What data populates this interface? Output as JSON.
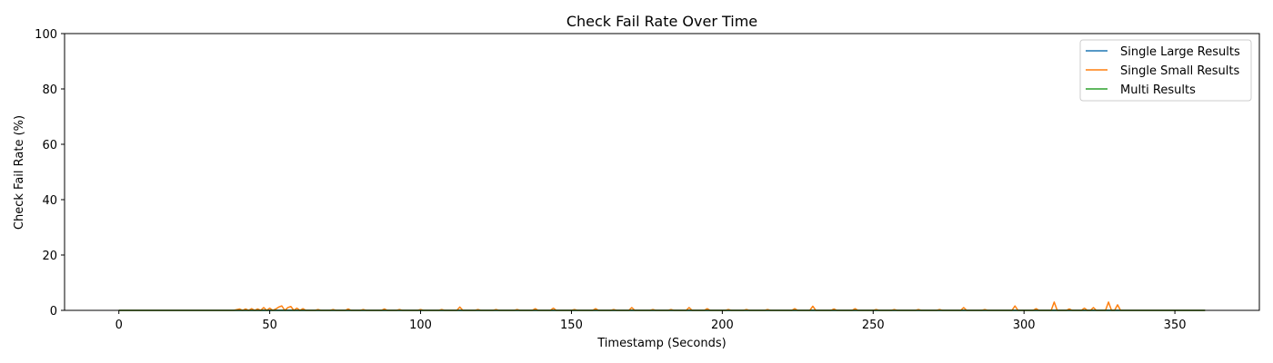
{
  "chart_data": {
    "type": "line",
    "title": "Check Fail Rate Over Time",
    "xlabel": "Timestamp (Seconds)",
    "ylabel": "Check Fail Rate (%)",
    "xlim": [
      -18,
      378
    ],
    "ylim": [
      0,
      100
    ],
    "xticks": [
      0,
      50,
      100,
      150,
      200,
      250,
      300,
      350
    ],
    "yticks": [
      0,
      20,
      40,
      60,
      80,
      100
    ],
    "grid": false,
    "legend_position": "top-right",
    "series": [
      {
        "name": "Single Large Results",
        "color": "#1f77b4",
        "x": [
          0,
          360
        ],
        "y": [
          0,
          0
        ]
      },
      {
        "name": "Single Small Results",
        "color": "#ff7f0e",
        "x": [
          0,
          38,
          40,
          41,
          42,
          43,
          44,
          45,
          46,
          47,
          48,
          49,
          50,
          51,
          52,
          53,
          54,
          55,
          56,
          57,
          58,
          59,
          60,
          61,
          62,
          65,
          66,
          67,
          70,
          71,
          72,
          75,
          76,
          77,
          80,
          81,
          82,
          87,
          88,
          89,
          92,
          93,
          94,
          99,
          100,
          101,
          106,
          107,
          108,
          112,
          113,
          114,
          118,
          119,
          120,
          124,
          125,
          126,
          131,
          132,
          133,
          137,
          138,
          139,
          143,
          144,
          145,
          150,
          151,
          152,
          157,
          158,
          159,
          163,
          164,
          165,
          169,
          170,
          171,
          176,
          177,
          178,
          182,
          183,
          184,
          188,
          189,
          190,
          194,
          195,
          196,
          201,
          202,
          203,
          207,
          208,
          209,
          214,
          215,
          216,
          223,
          224,
          225,
          229,
          230,
          231,
          236,
          237,
          238,
          243,
          244,
          245,
          250,
          251,
          252,
          256,
          257,
          258,
          264,
          265,
          266,
          271,
          272,
          273,
          279,
          280,
          281,
          286,
          287,
          288,
          296,
          297,
          298,
          303,
          304,
          305,
          309,
          310,
          311,
          314,
          315,
          316,
          319,
          320,
          321,
          322,
          323,
          324,
          327,
          328,
          329,
          330,
          331,
          332,
          360
        ],
        "y": [
          0,
          0,
          0.5,
          0,
          0.5,
          0,
          0.6,
          0,
          0.5,
          0,
          1.0,
          0,
          0.8,
          0,
          0.5,
          1.2,
          1.6,
          0,
          1.0,
          1.4,
          0,
          0.8,
          0,
          0.6,
          0,
          0,
          0.3,
          0,
          0,
          0.3,
          0,
          0,
          0.5,
          0,
          0,
          0.3,
          0,
          0,
          0.5,
          0,
          0,
          0.3,
          0,
          0,
          0.3,
          0,
          0,
          0.3,
          0,
          0,
          1.2,
          0,
          0,
          0.3,
          0,
          0,
          0.3,
          0,
          0,
          0.3,
          0,
          0,
          0.6,
          0,
          0,
          0.8,
          0,
          0,
          0.3,
          0,
          0,
          0.6,
          0,
          0,
          0.3,
          0,
          0,
          1.0,
          0,
          0,
          0.3,
          0,
          0,
          0.3,
          0,
          0,
          1.0,
          0,
          0,
          0.6,
          0,
          0,
          0.3,
          0,
          0,
          0.3,
          0,
          0,
          0.3,
          0,
          0,
          0.6,
          0,
          0,
          1.5,
          0,
          0,
          0.5,
          0,
          0,
          0.6,
          0,
          0,
          0.3,
          0,
          0,
          0.3,
          0,
          0,
          0.3,
          0,
          0,
          0.3,
          0,
          0,
          1.0,
          0,
          0,
          0.3,
          0,
          0,
          1.6,
          0,
          0,
          0.6,
          0,
          0,
          3.0,
          0,
          0,
          0.5,
          0,
          0,
          0.8,
          0,
          0,
          1.0,
          0,
          0,
          3.0,
          0,
          0,
          2.0,
          0,
          0
        ]
      },
      {
        "name": "Multi Results",
        "color": "#2ca02c",
        "x": [
          0,
          360
        ],
        "y": [
          0,
          0
        ]
      }
    ]
  }
}
